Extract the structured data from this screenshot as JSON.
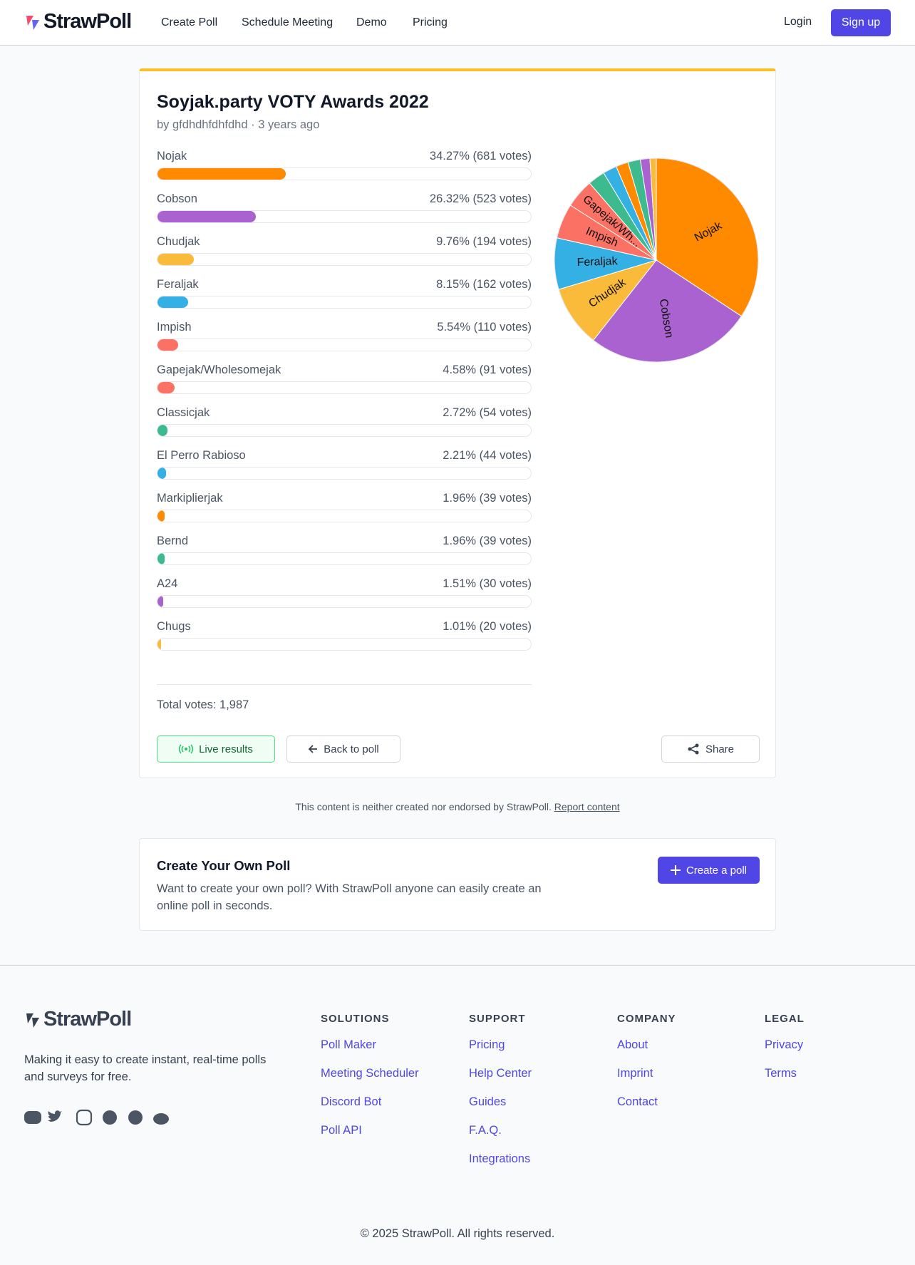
{
  "nav": {
    "logo": "StrawPoll",
    "links": [
      "Create Poll",
      "Schedule Meeting",
      "Demo",
      "Pricing"
    ],
    "login": "Login",
    "signup": "Sign up"
  },
  "poll": {
    "title": "Soyjak.party VOTY Awards 2022",
    "byline": "by gfdhdhfdhfdhd · 3 years ago",
    "total": "Total votes: 1,987",
    "pie_labels": [
      "Nojak",
      "Cobson",
      "Chudjak",
      "Feraljak",
      "Impish",
      "Gapejak/Wh..."
    ],
    "buttons": {
      "live": "Live results",
      "back": "Back to poll",
      "share": "Share"
    }
  },
  "chart_data": {
    "type": "bar",
    "categories": [
      "Nojak",
      "Cobson",
      "Chudjak",
      "Feraljak",
      "Impish",
      "Gapejak/Wholesomejak",
      "Classicjak",
      "El Perro Rabioso",
      "Markiplierjak",
      "Bernd",
      "A24",
      "Chugs"
    ],
    "values": [
      34.27,
      26.32,
      9.76,
      8.15,
      5.54,
      4.58,
      2.72,
      2.21,
      1.96,
      1.96,
      1.51,
      1.01
    ],
    "value_labels": [
      "34.27% (681 votes)",
      "26.32% (523 votes)",
      "9.76% (194 votes)",
      "8.15% (162 votes)",
      "5.54% (110 votes)",
      "4.58% (91 votes)",
      "2.72% (54 votes)",
      "2.21% (44 votes)",
      "1.96% (39 votes)",
      "1.96% (39 votes)",
      "1.51% (30 votes)",
      "1.01% (20 votes)"
    ],
    "colors": [
      "#ff8a00",
      "#a962cf",
      "#fbbb3a",
      "#35b0e4",
      "#fb7264",
      "#fb7264",
      "#3dbb8e",
      "#35b0e4",
      "#ff8a00",
      "#3dbb8e",
      "#a962cf",
      "#fbbb3a"
    ]
  },
  "disclaimer": {
    "text": "This content is neither created nor endorsed by StrawPoll.",
    "link": "Report content"
  },
  "cta": {
    "title": "Create Your Own Poll",
    "text": "Want to create your own poll? With StrawPoll anyone can easily create an online poll in seconds.",
    "button": "Create a poll"
  },
  "footer": {
    "logo": "StrawPoll",
    "tagline": "Making it easy to create instant, real-time polls and surveys for free.",
    "columns": [
      {
        "heading": "SOLUTIONS",
        "links": [
          "Poll Maker",
          "Meeting Scheduler",
          "Discord Bot",
          "Poll API"
        ]
      },
      {
        "heading": "SUPPORT",
        "links": [
          "Pricing",
          "Help Center",
          "Guides",
          "F.A.Q.",
          "Integrations"
        ]
      },
      {
        "heading": "COMPANY",
        "links": [
          "About",
          "Imprint",
          "Contact"
        ]
      },
      {
        "heading": "LEGAL",
        "links": [
          "Privacy",
          "Terms"
        ]
      }
    ],
    "copyright": "© 2025 StrawPoll. All rights reserved."
  }
}
